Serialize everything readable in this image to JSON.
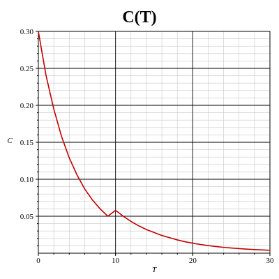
{
  "chart_data": {
    "type": "line",
    "title": "C(T)",
    "xlabel": "T",
    "ylabel": "C",
    "xlim": [
      0,
      30
    ],
    "ylim": [
      0,
      0.3
    ],
    "x_ticks": [
      0,
      10,
      20,
      30
    ],
    "x_tick_labels": [
      "0",
      "10",
      "20",
      "30"
    ],
    "y_ticks": [
      0.05,
      0.1,
      0.15,
      0.2,
      0.25,
      0.3
    ],
    "y_tick_labels": [
      "0.05",
      "0.10",
      "0.15",
      "0.20",
      "0.25",
      "0.30"
    ],
    "grid": true,
    "series": [
      {
        "color": "#c00000",
        "x": [
          0,
          1,
          2,
          3,
          4,
          5,
          6,
          7,
          8,
          9,
          10,
          11,
          12,
          13,
          14,
          15,
          16,
          17,
          18,
          19,
          20,
          21,
          22,
          23,
          24,
          25,
          26,
          27,
          28,
          29,
          30
        ],
        "y": [
          0.3,
          0.24,
          0.195,
          0.158,
          0.129,
          0.106,
          0.087,
          0.072,
          0.06,
          0.05,
          0.058,
          0.05,
          0.043,
          0.037,
          0.032,
          0.028,
          0.024,
          0.021,
          0.018,
          0.0155,
          0.0135,
          0.0118,
          0.0103,
          0.009,
          0.0079,
          0.007,
          0.0062,
          0.0055,
          0.0049,
          0.0044,
          0.004
        ]
      }
    ]
  }
}
